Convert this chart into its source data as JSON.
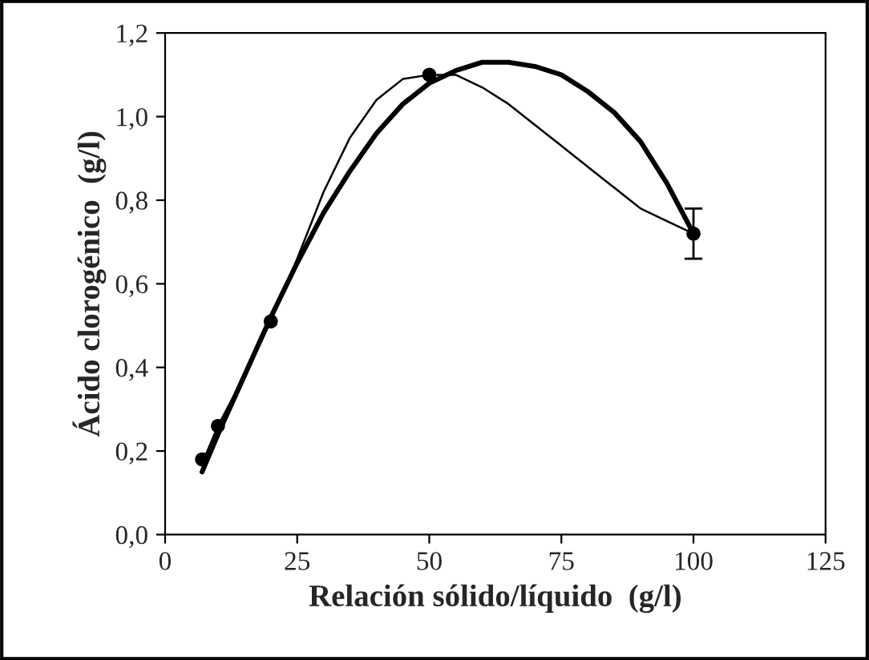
{
  "chart_data": {
    "type": "scatter",
    "xlabel": "Relación sólido/líquido  (g/l)",
    "ylabel": "Ácido clorogénico  (g/l)",
    "xlim": [
      0,
      125
    ],
    "xticks": [
      0,
      25,
      50,
      75,
      100,
      125
    ],
    "ylim": [
      0,
      1.2
    ],
    "yticks": [
      {
        "value": 0,
        "label": "0,0"
      },
      {
        "value": 0.2,
        "label": "0,2"
      },
      {
        "value": 0.4,
        "label": "0,4"
      },
      {
        "value": 0.6,
        "label": "0,6"
      },
      {
        "value": 0.8,
        "label": "0,8"
      },
      {
        "value": 1.0,
        "label": "1,0"
      },
      {
        "value": 1.2,
        "label": "1,2"
      }
    ],
    "grid": false,
    "series": [
      {
        "type": "line",
        "color": "#000000",
        "line_style": "solid",
        "marker": "none",
        "x": [
          7,
          10,
          15,
          20,
          25,
          30,
          35,
          40,
          45,
          50,
          55,
          60,
          65,
          70,
          75,
          80,
          85,
          90,
          95,
          100
        ],
        "values": [
          0.17,
          0.26,
          0.38,
          0.51,
          0.66,
          0.82,
          0.95,
          1.04,
          1.09,
          1.1,
          1.1,
          1.07,
          1.03,
          0.98,
          0.93,
          0.88,
          0.83,
          0.78,
          0.75,
          0.72
        ]
      },
      {
        "type": "line",
        "color": "#000000",
        "line_style": "solid",
        "marker": "none",
        "x": [
          7,
          10,
          15,
          20,
          25,
          30,
          35,
          40,
          45,
          50,
          55,
          60,
          65,
          70,
          75,
          80,
          85,
          90,
          95,
          100
        ],
        "values": [
          0.15,
          0.24,
          0.38,
          0.52,
          0.65,
          0.77,
          0.87,
          0.96,
          1.03,
          1.08,
          1.11,
          1.13,
          1.13,
          1.12,
          1.1,
          1.06,
          1.01,
          0.94,
          0.84,
          0.72
        ]
      },
      {
        "color": "#000000",
        "marker": "circle",
        "x": [
          7,
          10,
          20,
          50,
          100
        ],
        "values": [
          0.18,
          0.26,
          0.51,
          1.1,
          0.72
        ],
        "errors": [
          null,
          null,
          null,
          null,
          0.06
        ]
      }
    ]
  }
}
